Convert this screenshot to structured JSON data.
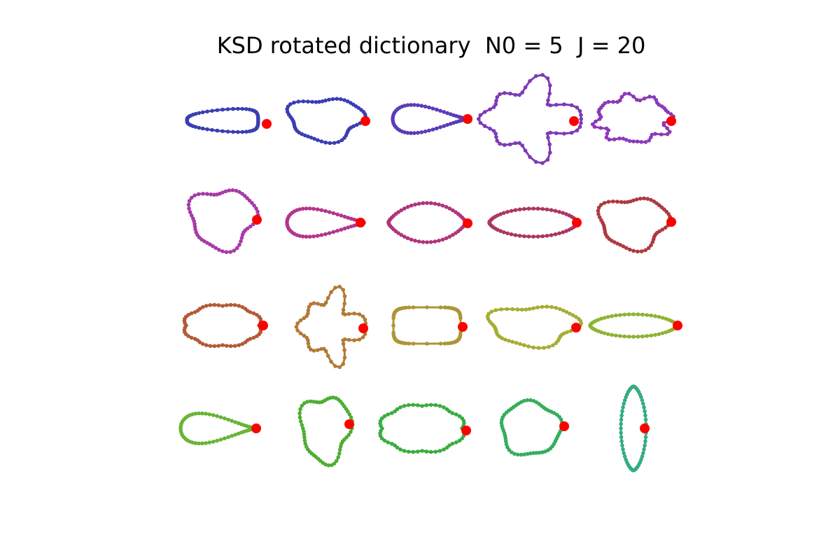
{
  "figure": {
    "title": "KSD rotated dictionary  N0 = 5  J = 20"
  },
  "grid": {
    "rows": 4,
    "cols": 5
  },
  "marker_color": "#ff0000",
  "atoms": [
    {
      "color": "#3a3fb0",
      "shape": "elongated-blob"
    },
    {
      "color": "#3a3db3",
      "shape": "irregular-blob"
    },
    {
      "color": "#5a3bb8",
      "shape": "teardrop"
    },
    {
      "color": "#7d3ab8",
      "shape": "spiky-leaf"
    },
    {
      "color": "#8d38b8",
      "shape": "jagged-blob"
    },
    {
      "color": "#a83aa8",
      "shape": "irregular-blob"
    },
    {
      "color": "#b3358f",
      "shape": "teardrop"
    },
    {
      "color": "#b0347a",
      "shape": "lens-point"
    },
    {
      "color": "#ad3560",
      "shape": "lens"
    },
    {
      "color": "#ad3a40",
      "shape": "irregular-blob"
    },
    {
      "color": "#b35a35",
      "shape": "cloud"
    },
    {
      "color": "#b37a35",
      "shape": "spiky-leaf"
    },
    {
      "color": "#ad9535",
      "shape": "rounded-rect"
    },
    {
      "color": "#a5ad35",
      "shape": "irregular-blob"
    },
    {
      "color": "#8fb335",
      "shape": "lens"
    },
    {
      "color": "#6ab335",
      "shape": "teardrop"
    },
    {
      "color": "#4fad35",
      "shape": "irregular-blob"
    },
    {
      "color": "#3aad40",
      "shape": "cloud"
    },
    {
      "color": "#35ad5a",
      "shape": "roundish-blob"
    },
    {
      "color": "#35ad80",
      "shape": "vertical-lens"
    }
  ]
}
